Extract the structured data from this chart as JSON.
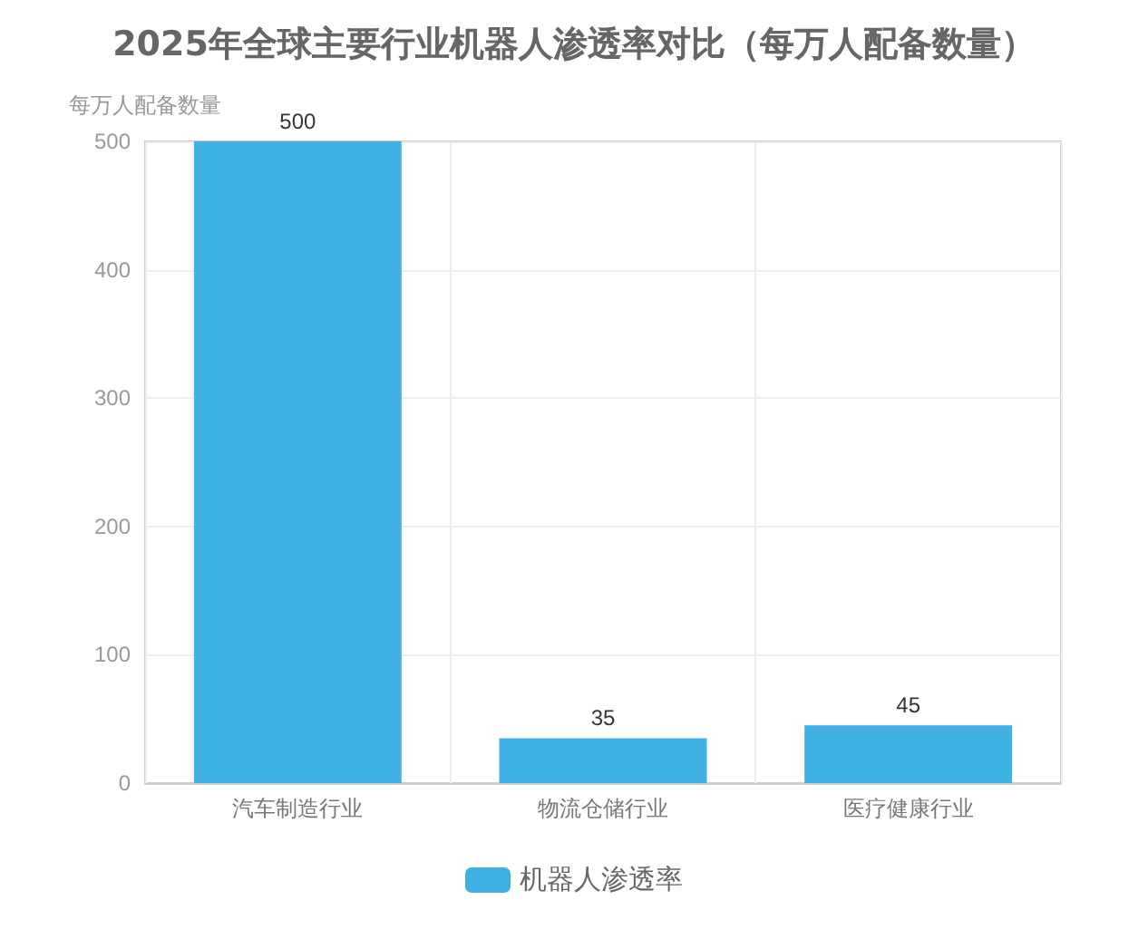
{
  "chart_data": {
    "type": "bar",
    "title": "2025年全球主要行业机器人渗透率对比（每万人配备数量）",
    "ylabel": "每万人配备数量",
    "categories": [
      "汽车制造行业",
      "物流仓储行业",
      "医疗健康行业"
    ],
    "series": [
      {
        "name": "机器人渗透率",
        "color": "#3fb1e3",
        "values": [
          500,
          35,
          45
        ]
      }
    ],
    "ylim": [
      0,
      500
    ],
    "yticks": [
      0,
      100,
      200,
      300,
      400,
      500
    ],
    "grid": true,
    "legend": "bottom",
    "data_labels": true
  }
}
